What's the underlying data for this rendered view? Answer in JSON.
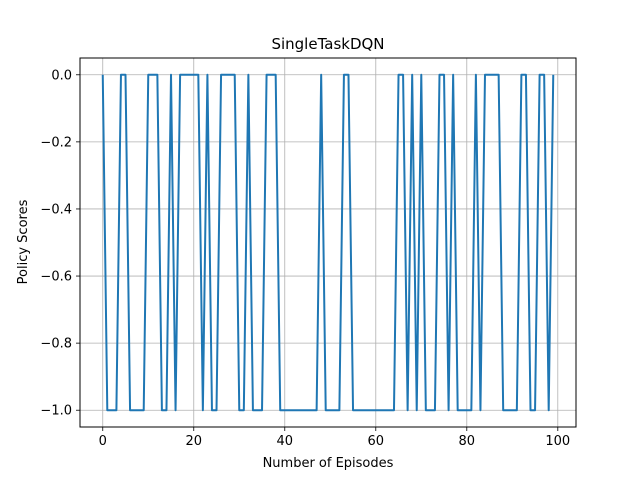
{
  "chart_data": {
    "type": "line",
    "title": "SingleTaskDQN",
    "xlabel": "Number of Episodes",
    "ylabel": "Policy Scores",
    "xlim": [
      -5,
      104
    ],
    "ylim": [
      -1.05,
      0.05
    ],
    "grid": true,
    "x_ticks": [
      0,
      20,
      40,
      60,
      80,
      100
    ],
    "x_tick_labels": [
      "0",
      "20",
      "40",
      "60",
      "80",
      "100"
    ],
    "y_ticks": [
      0.0,
      -0.2,
      -0.4,
      -0.6,
      -0.8,
      -1.0
    ],
    "y_tick_labels": [
      "0.0",
      "−0.2",
      "−0.4",
      "−0.6",
      "−0.8",
      "−1.0"
    ],
    "series": [
      {
        "color": "#1f77b4",
        "x": [
          0,
          1,
          2,
          3,
          4,
          5,
          6,
          7,
          8,
          9,
          10,
          11,
          12,
          13,
          14,
          15,
          16,
          17,
          18,
          19,
          20,
          21,
          22,
          23,
          24,
          25,
          26,
          27,
          28,
          29,
          30,
          31,
          32,
          33,
          34,
          35,
          36,
          37,
          38,
          39,
          40,
          41,
          42,
          43,
          44,
          45,
          46,
          47,
          48,
          49,
          50,
          51,
          52,
          53,
          54,
          55,
          56,
          57,
          58,
          59,
          60,
          61,
          62,
          63,
          64,
          65,
          66,
          67,
          68,
          69,
          70,
          71,
          72,
          73,
          74,
          75,
          76,
          77,
          78,
          79,
          80,
          81,
          82,
          83,
          84,
          85,
          86,
          87,
          88,
          89,
          90,
          91,
          92,
          93,
          94,
          95,
          96,
          97,
          98,
          99
        ],
        "y": [
          0,
          -1,
          -1,
          -1,
          0,
          0,
          -1,
          -1,
          -1,
          -1,
          0,
          0,
          0,
          -1,
          -1,
          0,
          -1,
          0,
          0,
          0,
          0,
          0,
          -1,
          0,
          -1,
          -1,
          0,
          0,
          0,
          0,
          -1,
          -1,
          0,
          -1,
          -1,
          -1,
          0,
          0,
          0,
          -1,
          -1,
          -1,
          -1,
          -1,
          -1,
          -1,
          -1,
          -1,
          0,
          -1,
          -1,
          -1,
          -1,
          0,
          0,
          -1,
          -1,
          -1,
          -1,
          -1,
          -1,
          -1,
          -1,
          -1,
          -1,
          0,
          0,
          -1,
          0,
          -1,
          0,
          -1,
          -1,
          -1,
          0,
          0,
          -1,
          0,
          -1,
          -1,
          -1,
          -1,
          0,
          -1,
          0,
          0,
          0,
          0,
          -1,
          -1,
          -1,
          -1,
          0,
          0,
          -1,
          -1,
          0,
          0,
          -1,
          0
        ]
      }
    ]
  }
}
